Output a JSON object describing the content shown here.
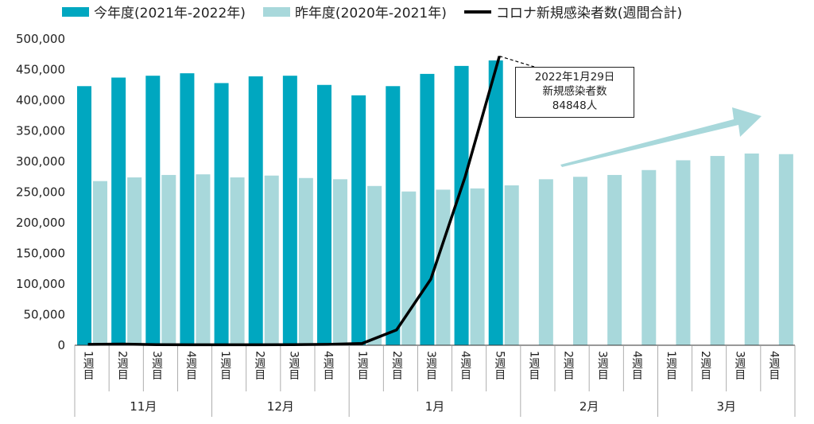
{
  "colors": {
    "current": "#00A7C0",
    "previous": "#A8D8DB",
    "cases": "#000000",
    "axis": "#333333",
    "trend_arrow": "#A8D8DB"
  },
  "legend": [
    {
      "label": "今年度(2021年-2022年)",
      "kind": "bar",
      "color": "#00A7C0"
    },
    {
      "label": "昨年度(2020年-2021年)",
      "kind": "bar",
      "color": "#A8D8DB"
    },
    {
      "label": "コロナ新規感染者数(週間合計)",
      "kind": "line",
      "color": "#000000"
    }
  ],
  "annotation": {
    "line1": "2022年1月29日",
    "line2": "新規感染者数",
    "line3": "84848人"
  },
  "chart_data": {
    "type": "bar",
    "categories": [
      "1週目",
      "2週目",
      "3週目",
      "4週目",
      "1週目",
      "2週目",
      "3週目",
      "4週目",
      "1週目",
      "2週目",
      "3週目",
      "4週目",
      "5週目",
      "1週目",
      "2週目",
      "3週目",
      "4週目",
      "1週目",
      "2週目",
      "3週目",
      "4週目"
    ],
    "months": [
      {
        "label": "11月",
        "weeks": 4
      },
      {
        "label": "12月",
        "weeks": 4
      },
      {
        "label": "1月",
        "weeks": 5
      },
      {
        "label": "2月",
        "weeks": 4
      },
      {
        "label": "3月",
        "weeks": 4
      }
    ],
    "series": [
      {
        "name": "今年度(2021年-2022年)",
        "type": "bar",
        "values": [
          423000,
          437000,
          440000,
          444000,
          428000,
          439000,
          440000,
          425000,
          408000,
          423000,
          443000,
          456000,
          465000,
          null,
          null,
          null,
          null,
          null,
          null,
          null,
          null
        ]
      },
      {
        "name": "昨年度(2020年-2021年)",
        "type": "bar",
        "values": [
          268000,
          274000,
          278000,
          279000,
          274000,
          277000,
          273000,
          271000,
          260000,
          251000,
          254000,
          256000,
          261000,
          271000,
          275000,
          278000,
          286000,
          302000,
          309000,
          313000,
          312000
        ]
      },
      {
        "name": "コロナ新規感染者数(週間合計)",
        "type": "line",
        "values": [
          1500,
          2000,
          1000,
          800,
          800,
          800,
          900,
          1500,
          3000,
          25000,
          108000,
          275000,
          472000,
          null,
          null,
          null,
          null,
          null,
          null,
          null,
          null
        ]
      }
    ],
    "yticks": [
      "0",
      "50,000",
      "100,000",
      "150,000",
      "200,000",
      "250,000",
      "300,000",
      "350,000",
      "400,000",
      "450,000",
      "500,000"
    ],
    "ylim": [
      0,
      500000
    ]
  }
}
